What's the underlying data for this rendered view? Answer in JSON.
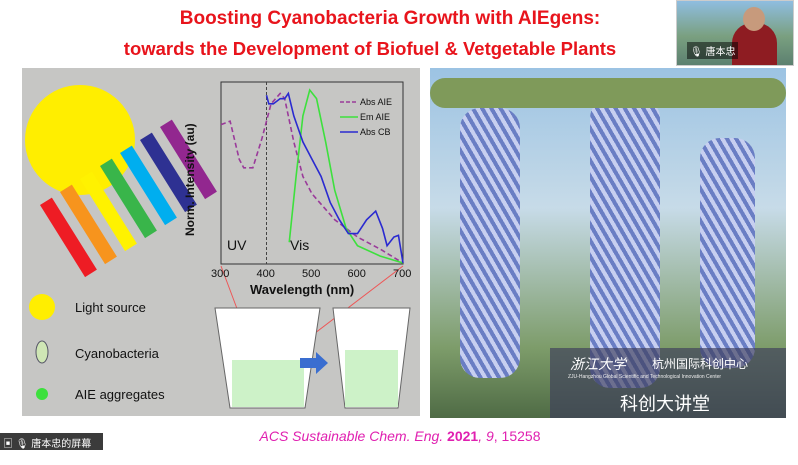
{
  "slide": {
    "title_line1": "Boosting Cyanobacteria Growth with AIEgens:",
    "title_line2": "towards the Development of Biofuel & Vetgetable Plants",
    "citation_prefix": "ACS Sustainable Chem. Eng. ",
    "citation_year": "2021",
    "citation_vol": "9",
    "citation_page": ", 15258",
    "legend": {
      "light": "Light source",
      "cyano": "Cyanobacteria",
      "aie": "AIE aggregates"
    },
    "photo_logo": {
      "university": "浙江大学",
      "center": "杭州国际科创中心",
      "subtitle": "ZJU-Hangzhou Global Scientific and Technological Innovation Center",
      "lecture": "科创大讲堂"
    }
  },
  "meeting": {
    "speaker_name": "唐本忠",
    "share_label": "唐本忠的屏幕共享"
  },
  "chart_data": {
    "type": "line",
    "xlabel": "Wavelength (nm)",
    "ylabel": "Norm. Intensity (au)",
    "xlim": [
      300,
      700
    ],
    "ylim": [
      0,
      1
    ],
    "xticks": [
      300,
      400,
      500,
      600,
      700
    ],
    "annotations": [
      "UV",
      "Vis"
    ],
    "legend_position": "top-right",
    "series": [
      {
        "name": "Abs AIE",
        "color": "#9a3a9a",
        "dash": true,
        "x": [
          300,
          320,
          340,
          350,
          370,
          390,
          410,
          430,
          440,
          460,
          480,
          500,
          550,
          600,
          650,
          700
        ],
        "y": [
          0.8,
          0.82,
          0.6,
          0.55,
          0.55,
          0.72,
          0.92,
          0.98,
          0.95,
          0.7,
          0.5,
          0.4,
          0.25,
          0.15,
          0.08,
          0
        ]
      },
      {
        "name": "Em AIE",
        "color": "#3de03d",
        "x": [
          450,
          465,
          480,
          495,
          510,
          530,
          550,
          575,
          600,
          650,
          700
        ],
        "y": [
          0.12,
          0.5,
          0.85,
          1.0,
          0.95,
          0.7,
          0.42,
          0.2,
          0.1,
          0.04,
          0
        ]
      },
      {
        "name": "Abs CB",
        "color": "#2a2ad0",
        "x": [
          400,
          405,
          415,
          430,
          440,
          448,
          460,
          480,
          500,
          520,
          540,
          560,
          580,
          600,
          620,
          640,
          655,
          665,
          680,
          690,
          700
        ],
        "y": [
          0.97,
          0.92,
          0.92,
          0.95,
          0.95,
          0.98,
          0.85,
          0.7,
          0.6,
          0.5,
          0.35,
          0.25,
          0.17,
          0.17,
          0.25,
          0.3,
          0.2,
          0.1,
          0.15,
          0.16,
          0
        ]
      }
    ]
  }
}
